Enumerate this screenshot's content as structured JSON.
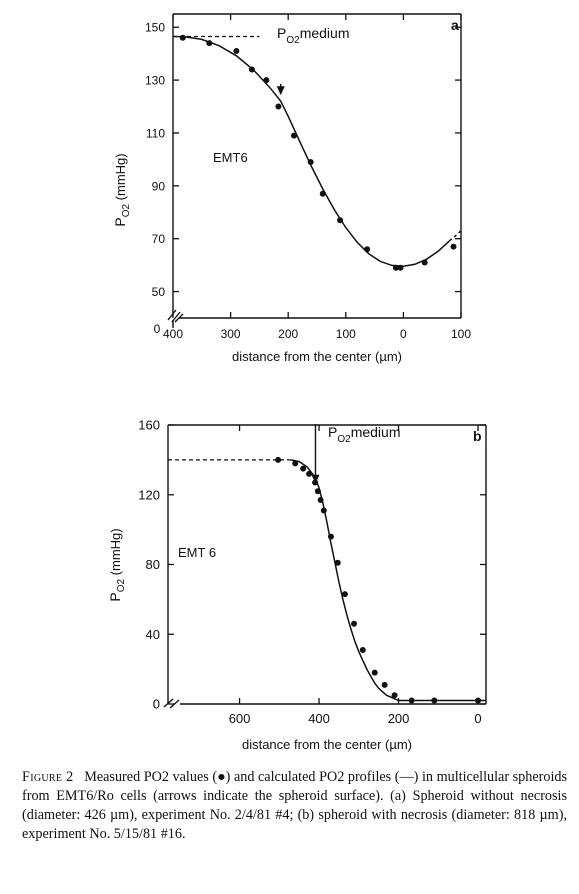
{
  "chart_data": [
    {
      "type": "scatter",
      "panel": "a",
      "title": "",
      "xlabel": "distance from the center (µm)",
      "ylabel": "P",
      "ylabel_sub": "O2",
      "ylabel_unit": "(mmHg)",
      "annotation": "EMT6",
      "ref_label": "P",
      "ref_label_sub": "O2",
      "ref_label_tail": "medium",
      "ref_value": 146.5,
      "xlim": [
        400,
        -100
      ],
      "ylim": [
        40,
        155
      ],
      "x_ticks": [
        400,
        300,
        200,
        100,
        0,
        -100
      ],
      "x_tick_labels": [
        "400",
        "300",
        "200",
        "100",
        "0",
        "100"
      ],
      "y_ticks": [
        50,
        70,
        90,
        110,
        130,
        150
      ],
      "y_tick_labels": [
        "50",
        "70",
        "90",
        "110",
        "130",
        "150"
      ],
      "y_zero_label": "0",
      "surface_arrow_x": 213,
      "series": [
        {
          "kind": "points",
          "x": [
            383,
            337,
            290,
            263,
            238,
            217,
            190,
            161,
            140,
            110,
            63,
            13,
            5,
            -37,
            -87
          ],
          "y": [
            146,
            144,
            141,
            134,
            130,
            120,
            109,
            99,
            87,
            77,
            66,
            59,
            59,
            61,
            67
          ]
        },
        {
          "kind": "curve",
          "x": [
            400,
            380,
            350,
            320,
            290,
            260,
            230,
            213,
            200,
            180,
            160,
            140,
            120,
            100,
            80,
            60,
            40,
            20,
            0,
            -20,
            -40,
            -60,
            -80
          ],
          "y": [
            146.5,
            146.4,
            145.4,
            143.0,
            139.2,
            133.8,
            126.7,
            122.0,
            116.3,
            106.8,
            97.5,
            88.8,
            81.0,
            74.2,
            68.6,
            64.3,
            61.4,
            59.9,
            59.6,
            60.3,
            62.2,
            65.2,
            69.2
          ]
        },
        {
          "kind": "dashed-curve",
          "x": [
            -80,
            -90,
            -100
          ],
          "y": [
            69.2,
            71.0,
            73.0
          ]
        }
      ]
    },
    {
      "type": "scatter",
      "panel": "b",
      "title": "",
      "xlabel": "distance from the center (µm)",
      "ylabel": "P",
      "ylabel_sub": "O2",
      "ylabel_unit": "(mmHg)",
      "annotation": "EMT 6",
      "ref_label": "P",
      "ref_label_sub": "O2",
      "ref_label_tail": "medium",
      "ref_value": 140,
      "xlim": [
        780,
        -20
      ],
      "ylim": [
        0,
        160
      ],
      "x_ticks": [
        600,
        400,
        200,
        0
      ],
      "x_tick_labels": [
        "600",
        "400",
        "200",
        "0"
      ],
      "y_ticks": [
        0,
        40,
        80,
        120,
        160
      ],
      "y_tick_labels": [
        "0",
        "40",
        "80",
        "120",
        "160"
      ],
      "surface_arrow_x": 409,
      "series": [
        {
          "kind": "points",
          "x": [
            503,
            460,
            440,
            425,
            410,
            403,
            396,
            388,
            370,
            353,
            335,
            312,
            290,
            260,
            235,
            210,
            167,
            110,
            0
          ],
          "y": [
            140,
            138,
            135,
            132,
            127,
            122,
            117,
            111,
            96,
            81,
            63,
            46,
            31,
            18,
            11,
            5,
            2,
            2,
            2
          ]
        },
        {
          "kind": "curve",
          "x": [
            470,
            450,
            430,
            410,
            400,
            390,
            380,
            370,
            360,
            350,
            340,
            330,
            320,
            310,
            300,
            290,
            280,
            270,
            260,
            250,
            240,
            230,
            220,
            210,
            200,
            180,
            170,
            -20
          ],
          "y": [
            140,
            139,
            136,
            130,
            124,
            115,
            104,
            92,
            81,
            70,
            60,
            51,
            43,
            36,
            30,
            25,
            20,
            16,
            12,
            9,
            7,
            5,
            4,
            3,
            2,
            2,
            2,
            2
          ]
        }
      ]
    }
  ],
  "caption": {
    "figure_label": "Figure 2",
    "text": "Measured P​O2 values (●) and calculated P​O2 profiles (—) in multicellular spheroids from EMT6/Ro cells (arrows indicate the spheroid surface). (a) Spheroid without necrosis (diameter: 426 µm), experiment No. 2/4/81 #4; (b) spheroid with necrosis (diameter: 818 µm), experiment No. 5/15/81 #16."
  }
}
